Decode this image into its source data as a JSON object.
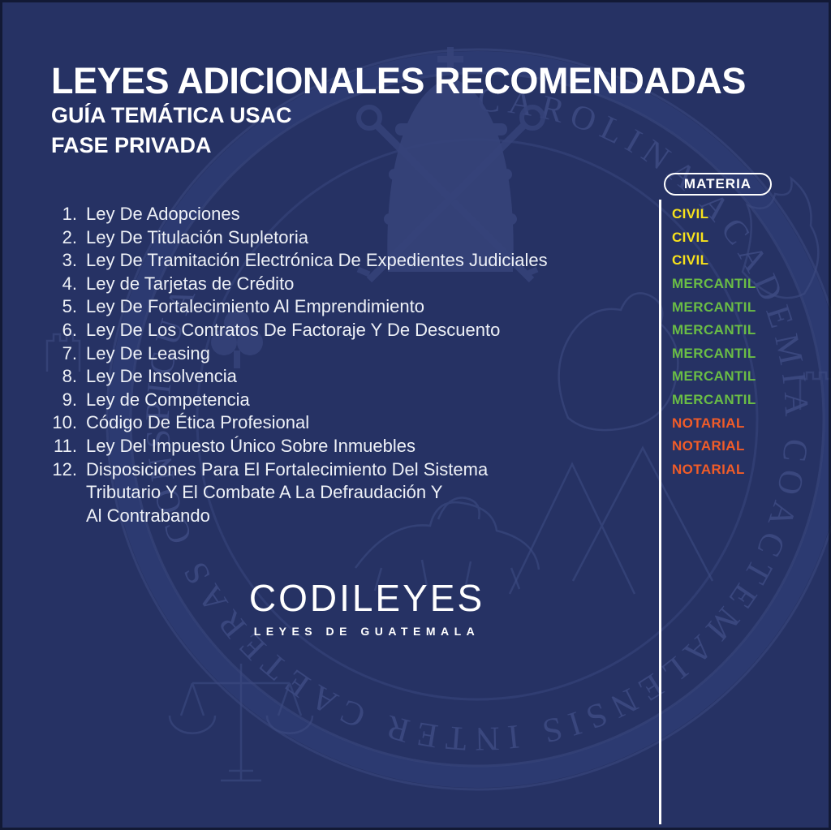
{
  "page": {
    "title": "LEYES ADICIONALES RECOMENDADAS",
    "subtitle1": "GUÍA TEMÁTICA USAC",
    "subtitle2": "FASE PRIVADA"
  },
  "materia": {
    "header": "MATERIA",
    "colors": {
      "CIVIL": "#f7e11c",
      "MERCANTIL": "#6abd45",
      "NOTARIAL": "#f15c28"
    }
  },
  "laws": [
    {
      "num": "1.",
      "name": "Ley De Adopciones",
      "materia": "CIVIL"
    },
    {
      "num": "2.",
      "name": "Ley De Titulación Supletoria",
      "materia": "CIVIL"
    },
    {
      "num": "3.",
      "name": "Ley De Tramitación Electrónica De Expedientes Judiciales",
      "materia": "CIVIL"
    },
    {
      "num": "4.",
      "name": "Ley de Tarjetas de Crédito",
      "materia": "MERCANTIL"
    },
    {
      "num": "5.",
      "name": "Ley De Fortalecimiento Al Emprendimiento",
      "materia": "MERCANTIL"
    },
    {
      "num": "6.",
      "name": "Ley De Los Contratos De Factoraje Y De Descuento",
      "materia": "MERCANTIL"
    },
    {
      "num": "7.",
      "name": "Ley De Leasing",
      "materia": "MERCANTIL"
    },
    {
      "num": "8.",
      "name": "Ley De Insolvencia",
      "materia": "MERCANTIL"
    },
    {
      "num": "9.",
      "name": "Ley de Competencia",
      "materia": "MERCANTIL"
    },
    {
      "num": "10.",
      "name": "Código De Ética Profesional",
      "materia": "NOTARIAL"
    },
    {
      "num": "11.",
      "name": "Ley Del Impuesto Único Sobre Inmuebles",
      "materia": "NOTARIAL"
    },
    {
      "num": "12.",
      "name": "Disposiciones Para El Fortalecimiento Del Sistema\nTributario Y El Combate A La Defraudación Y\nAl Contrabando",
      "materia": "NOTARIAL"
    }
  ],
  "logo": {
    "name": "CODILEYES",
    "tagline": "LEYES DE GUATEMALA"
  },
  "watermark": {
    "seal_text": "CAROLINA ACADEMIA COACTEMALENSIS INTER CAETERAS CONSPICUA"
  },
  "colors": {
    "background": "#263264",
    "text": "#eef1f7",
    "line": "#ffffff",
    "watermark": "#3d4b82"
  }
}
